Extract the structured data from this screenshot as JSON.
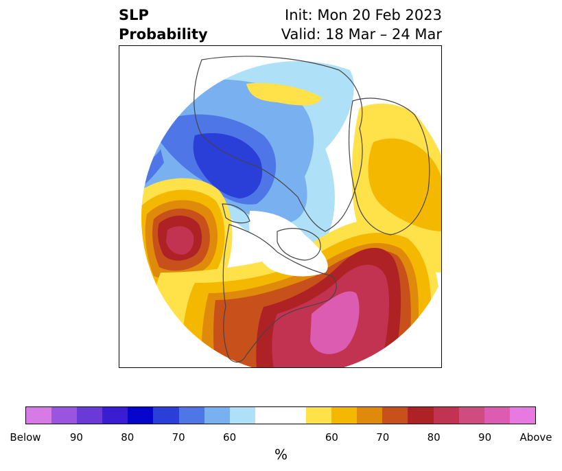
{
  "title": {
    "left_lines": [
      "SLP",
      "Probability"
    ],
    "init": "Init: Mon 20 Feb 2023",
    "valid": "Valid: 18 Mar – 24 Mar"
  },
  "colorbar": {
    "colors": [
      "#d67ae6",
      "#9a55e0",
      "#6a3ad8",
      "#3a1cd2",
      "#0505cc",
      "#2a3ed8",
      "#4e76e6",
      "#79b0f0",
      "#aee0f7",
      "#ffffff",
      "#ffffff",
      "#ffe14a",
      "#f4b800",
      "#e08a0c",
      "#c8501a",
      "#ae2225",
      "#c23352",
      "#ce4c80",
      "#db5cb0",
      "#e67ae0"
    ],
    "ticks": [
      "Below",
      "90",
      "80",
      "70",
      "60",
      "60",
      "70",
      "80",
      "90",
      "Above"
    ],
    "label": "%"
  },
  "legend_fill_colors": {
    "above_strong": "#db5cb0",
    "above_high": "#c23352",
    "above_red": "#ae2225",
    "above_orange_dark": "#c8501a",
    "above_orange": "#e08a0c",
    "above_gold": "#f4b800",
    "above_yellow": "#ffe14a",
    "below_light": "#aee0f7",
    "below_sky": "#79b0f0",
    "below_mid": "#4e76e6",
    "below_deep": "#2a3ed8",
    "below_darkest": "#0505cc",
    "land_outline": "#444444"
  }
}
